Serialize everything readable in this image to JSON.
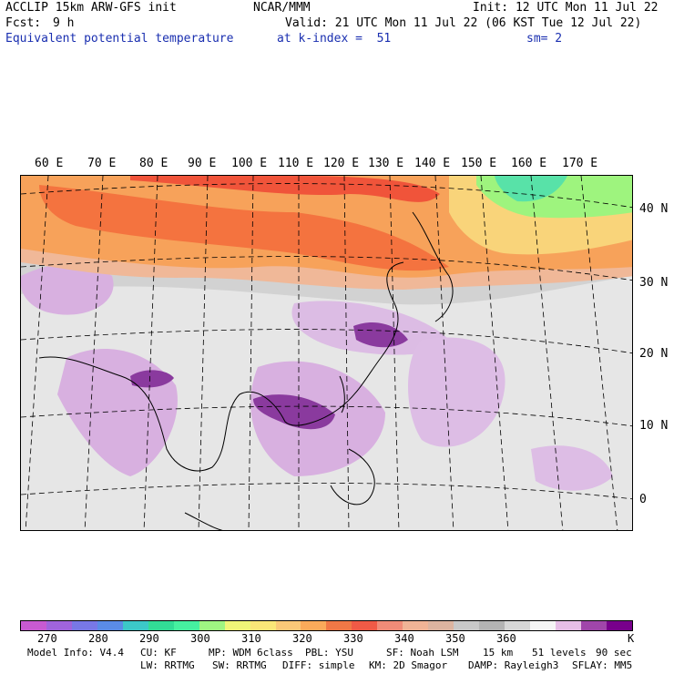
{
  "header": {
    "model": "ACCLIP 15km ARW-GFS init",
    "center": "NCAR/MMM",
    "init": "Init: 12 UTC Mon 11 Jul 22",
    "fcst_label": "Fcst:",
    "fcst_value": "9 h",
    "valid": "Valid: 21 UTC Mon 11 Jul 22 (06 KST Tue 12 Jul 22)",
    "field": "Equivalent potential temperature",
    "level": "at k-index =  51",
    "smooth": "sm= 2"
  },
  "map": {
    "lon_labels": [
      "60 E",
      "70 E",
      "80 E",
      "90 E",
      "100 E",
      "110 E",
      "120 E",
      "130 E",
      "140 E",
      "150 E",
      "160 E",
      "170 E"
    ],
    "lat_labels": [
      "40 N",
      "30 N",
      "20 N",
      "10 N",
      "0"
    ],
    "colors": {
      "warm_band": "#f4733f",
      "hot": "#f04638",
      "orange": "#f8a148",
      "yellow": "#f9e07a",
      "green": "#6fe39a",
      "grey": "#c8c8c8",
      "light": "#ececec",
      "lilac": "#d9b0e0",
      "purple": "#8a3a9e"
    }
  },
  "colorbar": {
    "colors": [
      "#c85ad2",
      "#a064dc",
      "#7878e6",
      "#5a8ce6",
      "#3cc8c8",
      "#32dc96",
      "#46f0a0",
      "#9ff582",
      "#f0f578",
      "#fae678",
      "#fac878",
      "#faaa5a",
      "#f07846",
      "#f05a46",
      "#f08c78",
      "#f0b496",
      "#dcb4a0",
      "#c8c8c8",
      "#b4b4b4",
      "#d7d7d7",
      "#f5f5f5",
      "#e6bee6",
      "#a046aa",
      "#78008c"
    ],
    "ticks": [
      "270",
      "280",
      "290",
      "300",
      "310",
      "320",
      "330",
      "340",
      "350",
      "360"
    ],
    "unit": "K"
  },
  "footer": {
    "line1": [
      "Model Info: V4.4",
      "CU: KF",
      "MP: WDM 6class",
      "PBL: YSU",
      "SF: Noah LSM",
      "15 km",
      "51 levels",
      "90 sec"
    ],
    "line2": [
      "LW: RRTMG",
      "SW: RRTMG",
      "DIFF: simple",
      "KM: 2D Smagor",
      "DAMP: Rayleigh3",
      "SFLAY: MM5"
    ]
  }
}
